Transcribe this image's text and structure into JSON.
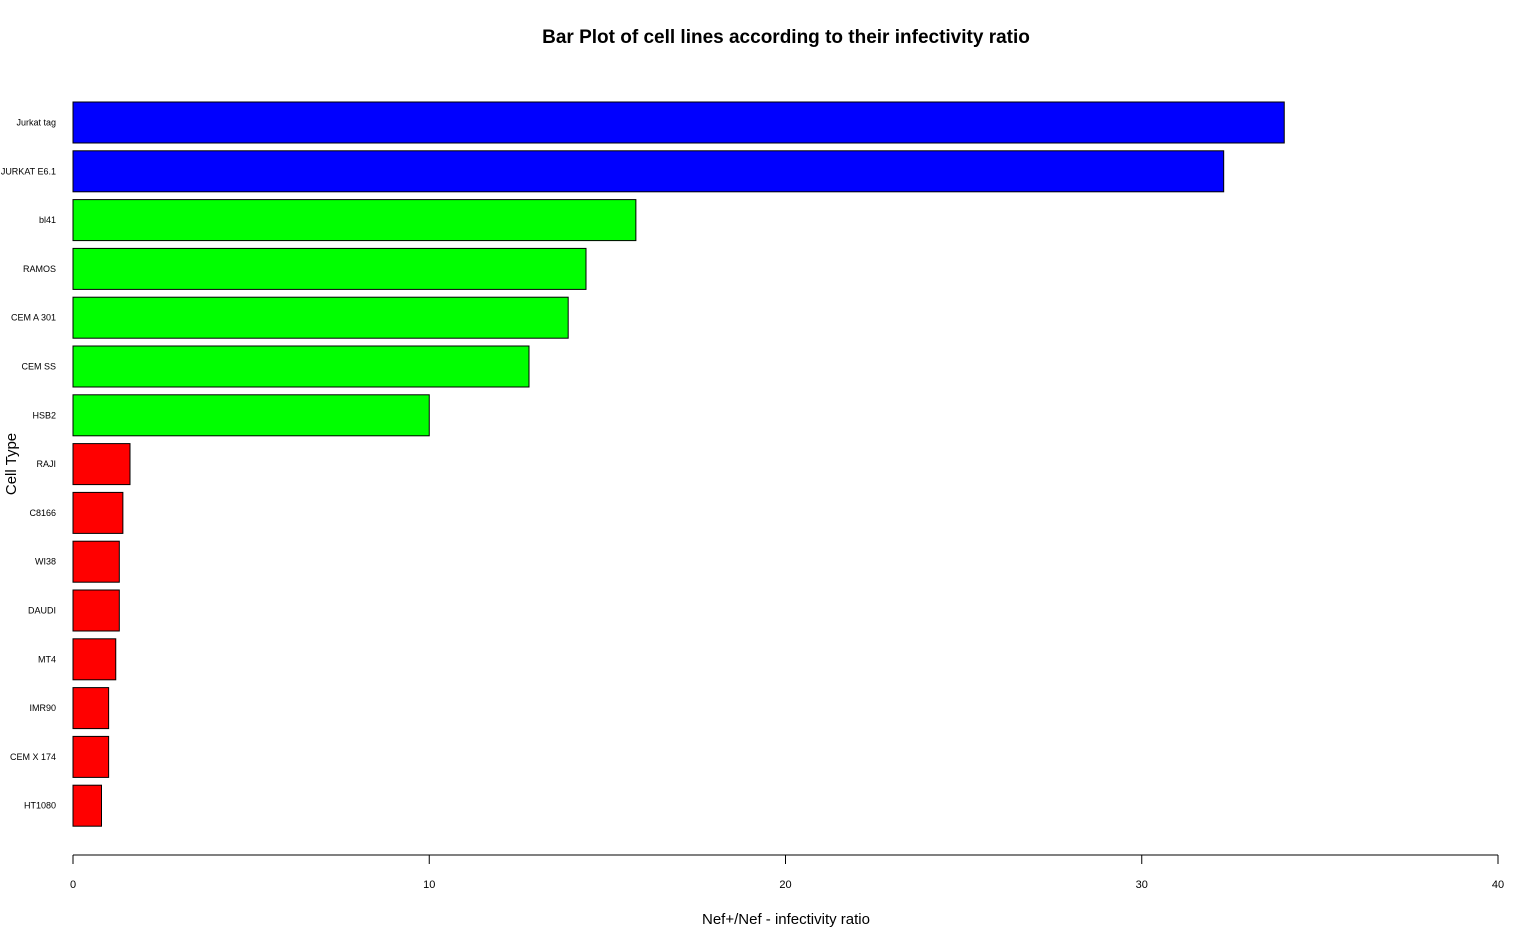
{
  "chart_data": {
    "type": "bar",
    "orientation": "horizontal",
    "title": "Bar Plot of cell lines according to their infectivity ratio",
    "xlabel": "Nef+/Nef - infectivity ratio",
    "ylabel": "Cell Type",
    "xlim": [
      0,
      40
    ],
    "xticks": [
      "0",
      "10",
      "20",
      "30",
      "40"
    ],
    "grid": false,
    "categories": [
      "Jurkat tag",
      "JURKAT E6.1",
      "bl41",
      "RAMOS",
      "CEM A 301",
      "CEM SS",
      "HSB2",
      "RAJI",
      "C8166",
      "WI38",
      "DAUDI",
      "MT4",
      "IMR90",
      "CEM X 174",
      "HT1080"
    ],
    "values": [
      34.0,
      32.3,
      15.8,
      14.4,
      13.9,
      12.8,
      10.0,
      1.6,
      1.4,
      1.3,
      1.3,
      1.2,
      1.0,
      1.0,
      0.8
    ],
    "colors": [
      "#0000ff",
      "#0000ff",
      "#00ff00",
      "#00ff00",
      "#00ff00",
      "#00ff00",
      "#00ff00",
      "#ff0000",
      "#ff0000",
      "#ff0000",
      "#ff0000",
      "#ff0000",
      "#ff0000",
      "#ff0000",
      "#ff0000"
    ]
  }
}
